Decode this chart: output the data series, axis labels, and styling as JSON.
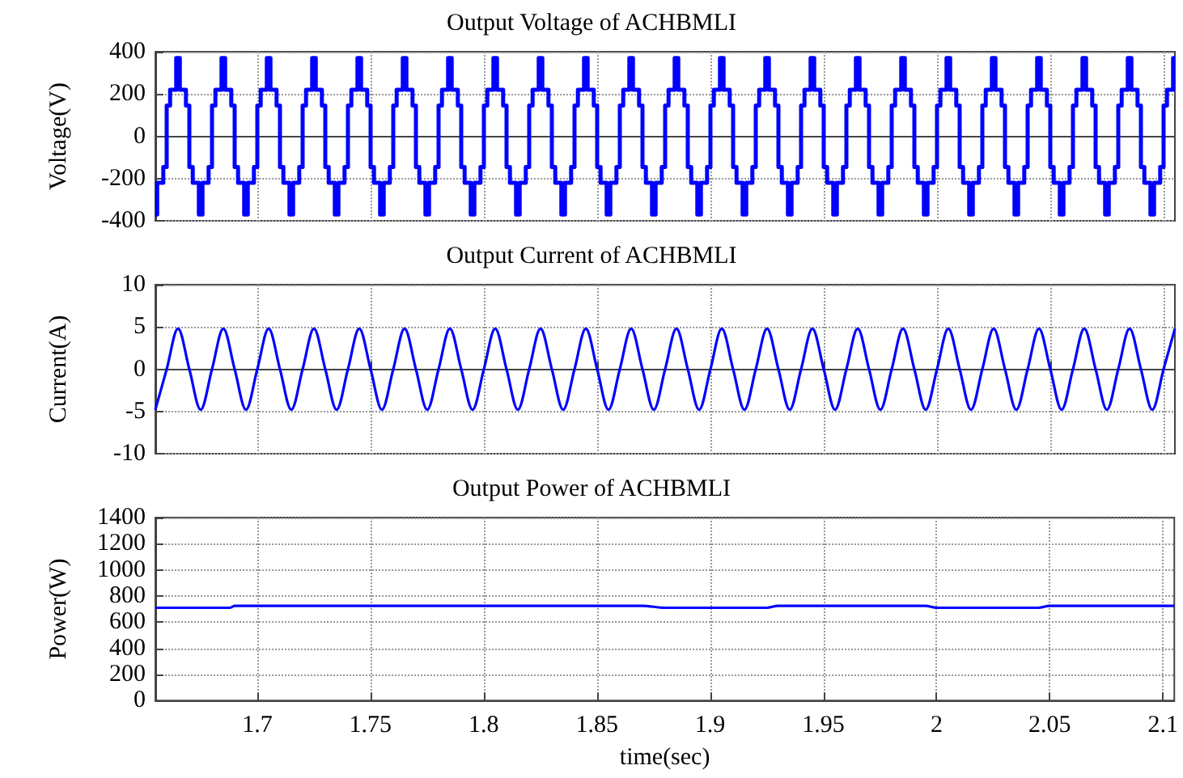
{
  "chart_data": [
    {
      "type": "step",
      "title": "Output Voltage of ACHBMLI",
      "ylabel": "Voltage(V)",
      "xlim": [
        1.655,
        2.105
      ],
      "xticks": [
        1.7,
        1.75,
        1.8,
        1.85,
        1.9,
        1.95,
        2,
        2.05,
        2.1
      ],
      "ylim": [
        -400,
        400
      ],
      "yticks": [
        -400,
        -200,
        0,
        200,
        400
      ],
      "grid": true,
      "marker": "none",
      "tick_labels": "y",
      "x": [
        1.655,
        1.6558,
        1.6585,
        1.66,
        1.6615,
        1.6642,
        1.6658,
        1.6685,
        1.67,
        1.6715,
        1.6742,
        1.6758,
        1.6785,
        1.68,
        1.6815,
        1.6842,
        1.6858,
        1.6885,
        1.69,
        1.6915,
        1.6942,
        1.6958,
        1.6985,
        1.7,
        1.7015,
        1.7042,
        1.7058,
        1.7085,
        1.71,
        1.7115,
        1.7142,
        1.7158,
        1.7185,
        1.72,
        1.7215,
        1.7242,
        1.7258,
        1.7285,
        1.73,
        1.7315,
        1.7342,
        1.7358,
        1.7385,
        1.74,
        1.7415,
        1.7442,
        1.7458,
        1.7485,
        1.75,
        1.7515,
        1.7542,
        1.7558,
        1.7585,
        1.76,
        1.7615,
        1.7642,
        1.7658,
        1.7685,
        1.77,
        1.7715,
        1.7742,
        1.7758,
        1.7785,
        1.78,
        1.7815,
        1.7842,
        1.7858,
        1.7885,
        1.79,
        1.7915,
        1.7942,
        1.7958,
        1.7985,
        1.8,
        1.8015,
        1.8042,
        1.8058,
        1.8085,
        1.81,
        1.8115,
        1.8142,
        1.8158,
        1.8185,
        1.82,
        1.8215,
        1.8242,
        1.8258,
        1.8285,
        1.83,
        1.8315,
        1.8342,
        1.8358,
        1.8385,
        1.84,
        1.8415,
        1.8442,
        1.8458,
        1.8485,
        1.85,
        1.8515,
        1.8542,
        1.8558,
        1.8585,
        1.86,
        1.8615,
        1.8642,
        1.8658,
        1.8685,
        1.87,
        1.8715,
        1.8742,
        1.8758,
        1.8785,
        1.88,
        1.8815,
        1.8842,
        1.8858,
        1.8885,
        1.89,
        1.8915,
        1.8942,
        1.8958,
        1.8985,
        1.9,
        1.9015,
        1.9042,
        1.9058,
        1.9085,
        1.91,
        1.9115,
        1.9142,
        1.9158,
        1.9185,
        1.92,
        1.9215,
        1.9242,
        1.9258,
        1.9285,
        1.93,
        1.9315,
        1.9342,
        1.9358,
        1.9385,
        1.94,
        1.9415,
        1.9442,
        1.9458,
        1.9485,
        1.95,
        1.9515,
        1.9542,
        1.9558,
        1.9585,
        1.96,
        1.9615,
        1.9642,
        1.9658,
        1.9685,
        1.97,
        1.9715,
        1.9742,
        1.9758,
        1.9785,
        1.98,
        1.9815,
        1.9842,
        1.9858,
        1.9885,
        1.99,
        1.9915,
        1.9942,
        1.9958,
        1.9985,
        2,
        2.0015,
        2.0042,
        2.0058,
        2.0085,
        2.01,
        2.0115,
        2.0142,
        2.0158,
        2.0185,
        2.02,
        2.0215,
        2.0242,
        2.0258,
        2.0285,
        2.03,
        2.0315,
        2.0342,
        2.0358,
        2.0385,
        2.04,
        2.0415,
        2.0442,
        2.0458,
        2.0485,
        2.05,
        2.0515,
        2.0542,
        2.0558,
        2.0585,
        2.06,
        2.0615,
        2.0642,
        2.0658,
        2.0685,
        2.07,
        2.0715,
        2.0742,
        2.0758,
        2.0785,
        2.08,
        2.0815,
        2.0842,
        2.0858,
        2.0885,
        2.09,
        2.0915,
        2.0942,
        2.0958,
        2.0985,
        2.1,
        2.1015,
        2.1042,
        2.105
      ],
      "series": [
        {
          "color": "#0000ff",
          "values": [
            -370,
            -220,
            -145,
            145,
            220,
            370,
            220,
            145,
            -145,
            -220,
            -370,
            -220,
            -145,
            145,
            220,
            370,
            220,
            145,
            -145,
            -220,
            -370,
            -220,
            -145,
            145,
            220,
            370,
            220,
            145,
            -145,
            -220,
            -370,
            -220,
            -145,
            145,
            220,
            370,
            220,
            145,
            -145,
            -220,
            -370,
            -220,
            -145,
            145,
            220,
            370,
            220,
            145,
            -145,
            -220,
            -370,
            -220,
            -145,
            145,
            220,
            370,
            220,
            145,
            -145,
            -220,
            -370,
            -220,
            -145,
            145,
            220,
            370,
            220,
            145,
            -145,
            -220,
            -370,
            -220,
            -145,
            145,
            220,
            370,
            220,
            145,
            -145,
            -220,
            -370,
            -220,
            -145,
            145,
            220,
            370,
            220,
            145,
            -145,
            -220,
            -370,
            -220,
            -145,
            145,
            220,
            370,
            220,
            145,
            -145,
            -220,
            -370,
            -220,
            -145,
            145,
            220,
            370,
            220,
            145,
            -145,
            -220,
            -370,
            -220,
            -145,
            145,
            220,
            370,
            220,
            145,
            -145,
            -220,
            -370,
            -220,
            -145,
            145,
            220,
            370,
            220,
            145,
            -145,
            -220,
            -370,
            -220,
            -145,
            145,
            220,
            370,
            220,
            145,
            -145,
            -220,
            -370,
            -220,
            -145,
            145,
            220,
            370,
            220,
            145,
            -145,
            -220,
            -370,
            -220,
            -145,
            145,
            220,
            370,
            220,
            145,
            -145,
            -220,
            -370,
            -220,
            -145,
            145,
            220,
            370,
            220,
            145,
            -145,
            -220,
            -370,
            -220,
            -145,
            145,
            220,
            370,
            220,
            145,
            -145,
            -220,
            -370,
            -220,
            -145,
            145,
            220,
            370,
            220,
            145,
            -145,
            -220,
            -370,
            -220,
            -145,
            145,
            220,
            370,
            220,
            145,
            -145,
            -220,
            -370,
            -220,
            -145,
            145,
            220,
            370,
            220,
            145,
            -145,
            -220,
            -370,
            -220,
            -145,
            145,
            220,
            370,
            220,
            145,
            -145,
            -220,
            -370,
            -220,
            -145,
            145,
            220,
            370,
            370
          ]
        }
      ]
    },
    {
      "type": "line",
      "title": "Output Current of ACHBMLI",
      "ylabel": "Current(A)",
      "xlim": [
        1.655,
        2.105
      ],
      "xticks": [
        1.7,
        1.75,
        1.8,
        1.85,
        1.9,
        1.95,
        2,
        2.05,
        2.1
      ],
      "ylim": [
        -10,
        10
      ],
      "yticks": [
        -10,
        -5,
        0,
        5,
        10
      ],
      "grid": true,
      "marker": "none",
      "tick_labels": "y",
      "x": [
        1.655,
        1.66,
        1.665,
        1.67,
        1.675,
        1.68,
        1.685,
        1.69,
        1.695,
        1.7,
        1.705,
        1.71,
        1.715,
        1.72,
        1.725,
        1.73,
        1.735,
        1.74,
        1.745,
        1.75,
        1.755,
        1.76,
        1.765,
        1.77,
        1.775,
        1.78,
        1.785,
        1.79,
        1.795,
        1.8,
        1.805,
        1.81,
        1.815,
        1.82,
        1.825,
        1.83,
        1.835,
        1.84,
        1.845,
        1.85,
        1.855,
        1.86,
        1.865,
        1.87,
        1.875,
        1.88,
        1.885,
        1.89,
        1.895,
        1.9,
        1.905,
        1.91,
        1.915,
        1.92,
        1.925,
        1.93,
        1.935,
        1.94,
        1.945,
        1.95,
        1.955,
        1.96,
        1.965,
        1.97,
        1.975,
        1.98,
        1.985,
        1.99,
        1.995,
        2,
        2.005,
        2.01,
        2.015,
        2.02,
        2.025,
        2.03,
        2.035,
        2.04,
        2.045,
        2.05,
        2.055,
        2.06,
        2.065,
        2.07,
        2.075,
        2.08,
        2.085,
        2.09,
        2.095,
        2.1,
        2.105
      ],
      "series": [
        {
          "color": "#0000ff",
          "values": [
            -4.8,
            0,
            4.8,
            0,
            -4.8,
            0,
            4.8,
            0,
            -4.8,
            0,
            4.8,
            0,
            -4.8,
            0,
            4.8,
            0,
            -4.8,
            0,
            4.8,
            0,
            -4.8,
            0,
            4.8,
            0,
            -4.8,
            0,
            4.8,
            0,
            -4.8,
            0,
            4.8,
            0,
            -4.8,
            0,
            4.8,
            0,
            -4.8,
            0,
            4.8,
            0,
            -4.8,
            0,
            4.8,
            0,
            -4.8,
            0,
            4.8,
            0,
            -4.8,
            0,
            4.8,
            0,
            -4.8,
            0,
            4.8,
            0,
            -4.8,
            0,
            4.8,
            0,
            -4.8,
            0,
            4.8,
            0,
            -4.8,
            0,
            4.8,
            0,
            -4.8,
            0,
            4.8,
            0,
            -4.8,
            0,
            4.8,
            0,
            -4.8,
            0,
            4.8,
            0,
            -4.8,
            0,
            4.8,
            0,
            -4.8,
            0,
            4.8,
            0,
            -4.8,
            0,
            4.8
          ]
        }
      ]
    },
    {
      "type": "line",
      "title": "Output Power of ACHBMLI",
      "xlabel": "time(sec)",
      "ylabel": "Power(W)",
      "xlim": [
        1.655,
        2.105
      ],
      "xticks": [
        1.7,
        1.75,
        1.8,
        1.85,
        1.9,
        1.95,
        2,
        2.05,
        2.1
      ],
      "ylim": [
        0,
        1400
      ],
      "yticks": [
        0,
        200,
        400,
        600,
        800,
        1000,
        1200,
        1400
      ],
      "grid": true,
      "marker": "none",
      "x": [
        1.655,
        1.688,
        1.69,
        1.87,
        1.88,
        1.925,
        1.93,
        1.995,
        2,
        2.045,
        2.05,
        2.105
      ],
      "series": [
        {
          "color": "#0000ff",
          "values": [
            710,
            710,
            725,
            725,
            710,
            710,
            725,
            725,
            710,
            710,
            725,
            725
          ]
        }
      ]
    }
  ]
}
